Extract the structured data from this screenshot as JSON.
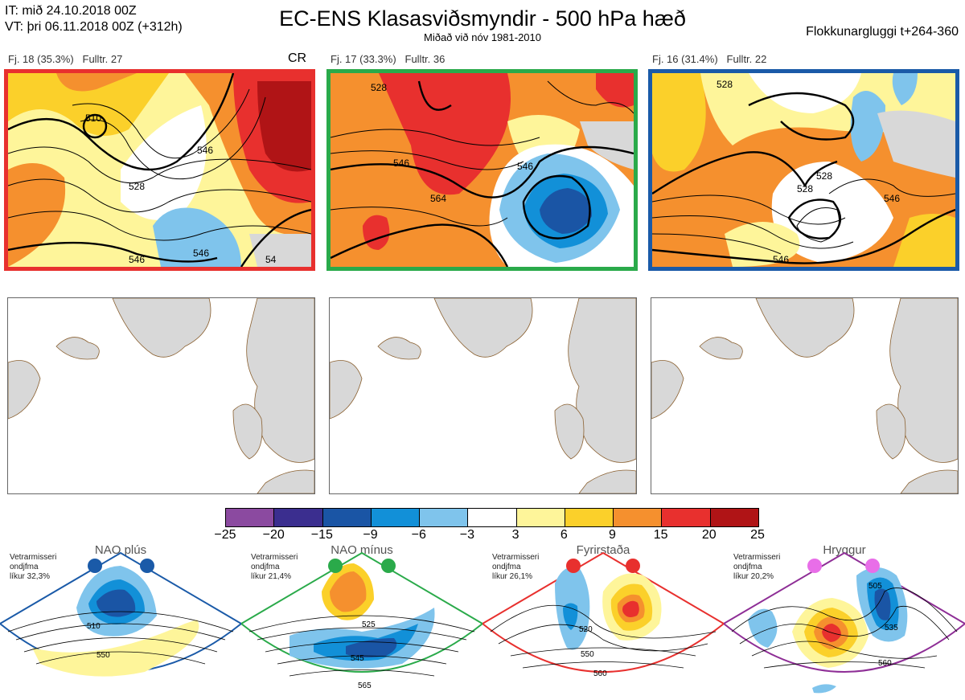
{
  "header": {
    "it": "IT: mið 24.10.2018 00Z",
    "vt": "VT: þri 06.11.2018 00Z  (+312h)",
    "title": "EC-ENS Klasasviðsmyndir - 500 hPa hæð",
    "subtitle": "Miðað við nóv 1981-2010",
    "window": "Flokkunargluggi t+264-360"
  },
  "clusters": [
    {
      "label": "Fj. 18 (35.3%)",
      "fulltr": "Fulltr. 27",
      "tag": "CR",
      "border": "#e8302e",
      "contour_labels": [
        "528",
        "546",
        "546",
        "510",
        "546",
        "54"
      ]
    },
    {
      "label": "Fj. 17 (33.3%)",
      "fulltr": "Fulltr. 36",
      "tag": "",
      "border": "#2aaa4a",
      "contour_labels": [
        "546",
        "546",
        "564",
        "528"
      ]
    },
    {
      "label": "Fj. 16 (31.4%)",
      "fulltr": "Fulltr. 22",
      "tag": "",
      "border": "#1a5aa8",
      "contour_labels": [
        "528",
        "528",
        "528",
        "546",
        "546"
      ]
    }
  ],
  "colorbar": {
    "colors": [
      "#8b4aa0",
      "#3b2e8f",
      "#1a55a5",
      "#1290d8",
      "#7fc4ec",
      "#ffffff",
      "#fef59a",
      "#fbd02a",
      "#f5902e",
      "#e8302e",
      "#b01416"
    ],
    "ticks": [
      "−25",
      "−20",
      "−15",
      "−9",
      "−6",
      "−3",
      "3",
      "6",
      "9",
      "15",
      "20",
      "25"
    ]
  },
  "regimes": [
    {
      "title": "NAO plús",
      "text": [
        "Vetrarmisseri",
        "ondjfma",
        "líkur 32,3%"
      ],
      "color": "#1a5aa8",
      "labels": [
        "510",
        "550"
      ]
    },
    {
      "title": "NAO mínus",
      "text": [
        "Vetrarmisseri",
        "ondjfma",
        "líkur 21,4%"
      ],
      "color": "#2aaa4a",
      "labels": [
        "525",
        "545",
        "565"
      ]
    },
    {
      "title": "Fyrirstaða",
      "text": [
        "Vetrarmisseri",
        "ondjfma",
        "líkur 26,1%"
      ],
      "color": "#e8302e",
      "labels": [
        "520",
        "550",
        "560"
      ]
    },
    {
      "title": "Hryggur",
      "text": [
        "Vetrarmisseri",
        "ondjfma",
        "líkur 20,2%"
      ],
      "color": "#8e2e96",
      "labels": [
        "505",
        "535",
        "560"
      ]
    }
  ]
}
